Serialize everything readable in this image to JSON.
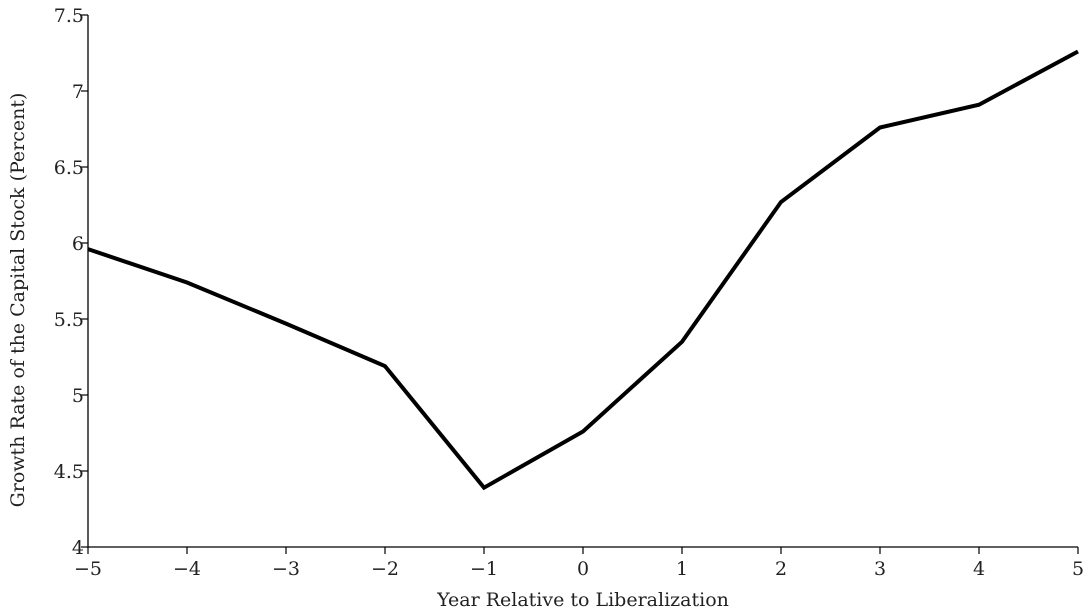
{
  "chart_data": {
    "type": "line",
    "title": "",
    "xlabel": "Year Relative to Liberalization",
    "ylabel": "Growth Rate of the Capital Stock (Percent)",
    "xlim": [
      -5,
      5
    ],
    "ylim": [
      4,
      7.5
    ],
    "grid": false,
    "x_ticks": [
      -5,
      -4,
      -3,
      -2,
      -1,
      0,
      1,
      2,
      3,
      4,
      5
    ],
    "x_tick_labels": [
      "−5",
      "−4",
      "−3",
      "−2",
      "−1",
      "0",
      "1",
      "2",
      "3",
      "4",
      "5"
    ],
    "y_ticks": [
      4,
      4.5,
      5,
      5.5,
      6,
      6.5,
      7,
      7.5
    ],
    "y_tick_labels": [
      "4",
      "4.5",
      "5",
      "5.5",
      "6",
      "6.5",
      "7",
      "7.5"
    ],
    "series": [
      {
        "color": "#000000",
        "x": [
          -5,
          -4,
          -3,
          -2,
          -1,
          0,
          1,
          2,
          3,
          4,
          5
        ],
        "values": [
          5.96,
          5.74,
          5.47,
          5.19,
          4.39,
          4.76,
          5.35,
          6.27,
          6.76,
          6.91,
          7.26
        ]
      }
    ]
  }
}
